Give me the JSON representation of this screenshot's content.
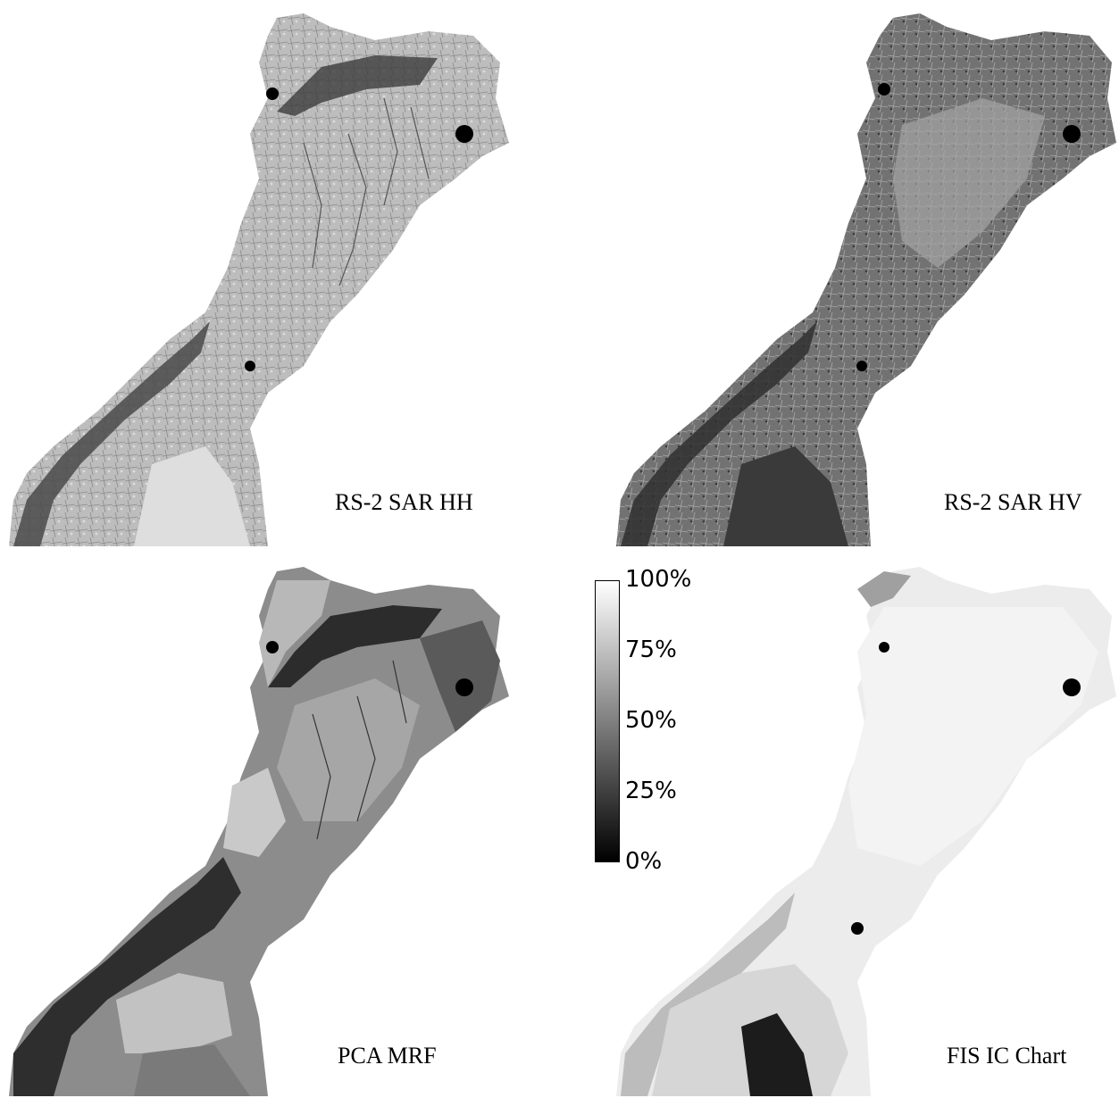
{
  "panels": [
    {
      "caption": "RS-2 SAR HH",
      "tone": "light-textured",
      "base": "#b9b9b9",
      "dark": "#4a4a4a",
      "light": "#e2e2e2"
    },
    {
      "caption": "RS-2 SAR HV",
      "tone": "dark-textured",
      "base": "#6f6f6f",
      "dark": "#2e2e2e",
      "light": "#b5b5b5"
    },
    {
      "caption": "PCA MRF",
      "tone": "segmented",
      "base": "#8f8f8f",
      "dark": "#2c2c2c",
      "light": "#c8c8c8"
    },
    {
      "caption": "FIS IC Chart",
      "tone": "chart",
      "base": "#e6e6e6",
      "dark": "#1c1c1c",
      "light": "#f0f0f0"
    }
  ],
  "colorbar": {
    "labels": [
      "100%",
      "75%",
      "50%",
      "25%",
      "0%"
    ],
    "fractions": [
      1.0,
      0.75,
      0.5,
      0.25,
      0.0
    ],
    "top_color": "#ffffff",
    "bottom_color": "#000000"
  }
}
